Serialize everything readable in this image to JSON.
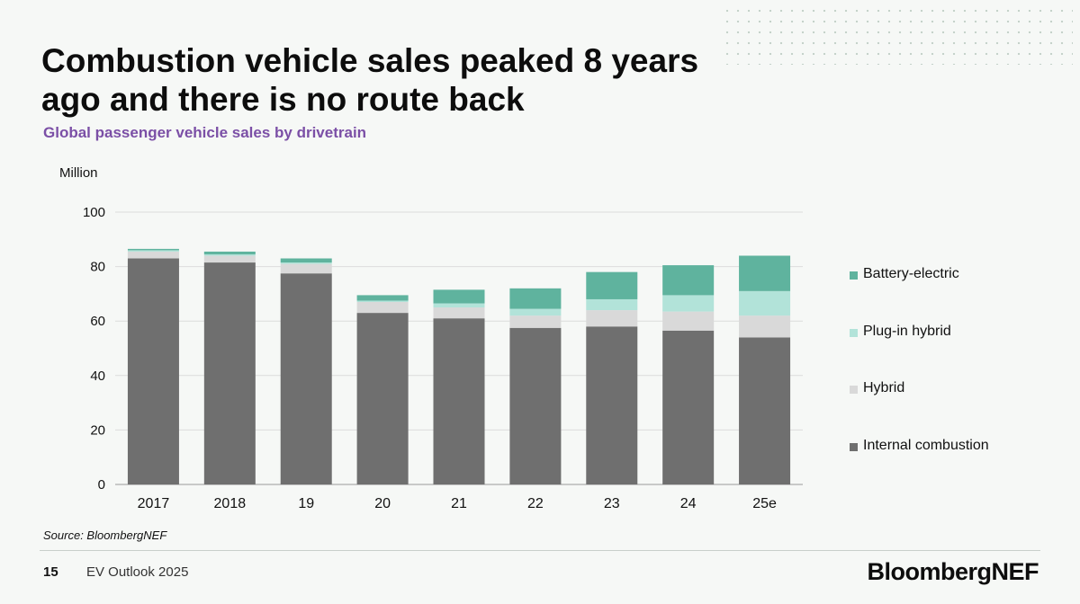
{
  "slide": {
    "title": "Combustion vehicle sales peaked 8 years ago and there is no route back",
    "subtitle": "Global passenger vehicle sales by drivetrain",
    "source": "Source: BloombergNEF",
    "page_number": "15",
    "footer_text": "EV Outlook 2025",
    "logo_text": "BloombergNEF"
  },
  "chart_data": {
    "type": "bar",
    "stacked": true,
    "ylabel": "Million",
    "ylim": [
      0,
      100
    ],
    "yticks": [
      0,
      20,
      40,
      60,
      80,
      100
    ],
    "grid": true,
    "legend_position": "right",
    "categories": [
      "2017",
      "2018",
      "19",
      "20",
      "21",
      "22",
      "23",
      "24",
      "25e"
    ],
    "series": [
      {
        "name": "Internal combustion",
        "color": "#6f6f6f",
        "values": [
          83,
          81.5,
          77.5,
          63,
          61,
          57.5,
          58,
          56.5,
          54
        ]
      },
      {
        "name": "Hybrid",
        "color": "#d9d9d9",
        "values": [
          2.5,
          2.5,
          3.5,
          4,
          4,
          4.5,
          6,
          7,
          8
        ]
      },
      {
        "name": "Plug-in hybrid",
        "color": "#b2e3d9",
        "values": [
          0.5,
          0.5,
          0.5,
          0.5,
          1.5,
          2.5,
          4,
          6,
          9
        ]
      },
      {
        "name": "Battery-electric",
        "color": "#5fb39e",
        "values": [
          0.5,
          1,
          1.5,
          2,
          5,
          7.5,
          10,
          11,
          13
        ]
      }
    ]
  }
}
